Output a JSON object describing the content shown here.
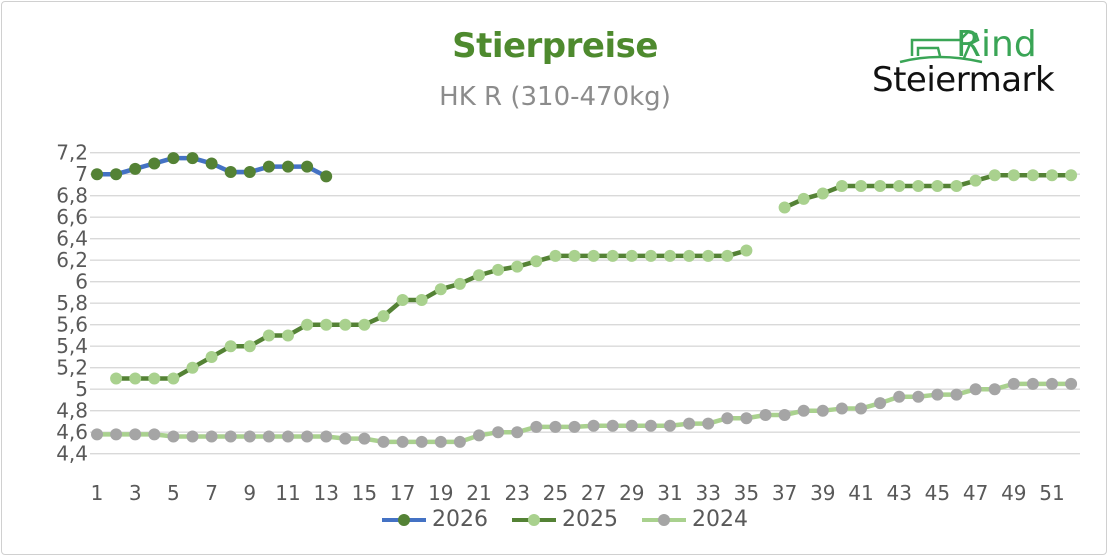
{
  "logo": {
    "line1": "Rind",
    "line2": "Steiermark"
  },
  "chart_data": {
    "type": "line",
    "title": "Stierpreise",
    "subtitle": "HK R (310-470kg)",
    "xlabel": "",
    "ylabel": "",
    "ylim": [
      4.4,
      7.2
    ],
    "ystep": 0.2,
    "xlim": [
      1,
      52
    ],
    "x_tick_labels": [
      "1",
      "3",
      "5",
      "7",
      "9",
      "11",
      "13",
      "15",
      "17",
      "19",
      "21",
      "23",
      "25",
      "27",
      "29",
      "31",
      "33",
      "35",
      "37",
      "39",
      "41",
      "43",
      "45",
      "47",
      "49",
      "51"
    ],
    "y_tick_labels": [
      "4,4",
      "4,6",
      "4,8",
      "5",
      "5,2",
      "5,4",
      "5,6",
      "5,8",
      "6",
      "6,2",
      "6,4",
      "6,6",
      "6,8",
      "7",
      "7,2"
    ],
    "grid": true,
    "legend_position": "bottom",
    "x": [
      1,
      2,
      3,
      4,
      5,
      6,
      7,
      8,
      9,
      10,
      11,
      12,
      13,
      14,
      15,
      16,
      17,
      18,
      19,
      20,
      21,
      22,
      23,
      24,
      25,
      26,
      27,
      28,
      29,
      30,
      31,
      32,
      33,
      34,
      35,
      36,
      37,
      38,
      39,
      40,
      41,
      42,
      43,
      44,
      45,
      46,
      47,
      48,
      49,
      50,
      51,
      52
    ],
    "series": [
      {
        "name": "2026",
        "line_color": "#4472c4",
        "marker_color": "#548235",
        "values": [
          7.0,
          7.0,
          7.05,
          7.1,
          7.15,
          7.15,
          7.1,
          7.02,
          7.02,
          7.07,
          7.07,
          7.07,
          6.98,
          null,
          null,
          null,
          null,
          null,
          null,
          null,
          null,
          null,
          null,
          null,
          null,
          null,
          null,
          null,
          null,
          null,
          null,
          null,
          null,
          null,
          null,
          null,
          null,
          null,
          null,
          null,
          null,
          null,
          null,
          null,
          null,
          null,
          null,
          null,
          null,
          null,
          null,
          null
        ]
      },
      {
        "name": "2025",
        "line_color": "#548235",
        "marker_color": "#a9d18e",
        "values": [
          null,
          5.1,
          5.1,
          5.1,
          5.1,
          5.2,
          5.3,
          5.4,
          5.4,
          5.5,
          5.5,
          5.6,
          5.6,
          5.6,
          5.6,
          5.68,
          5.83,
          5.83,
          5.93,
          5.98,
          6.06,
          6.11,
          6.14,
          6.19,
          6.24,
          6.24,
          6.24,
          6.24,
          6.24,
          6.24,
          6.24,
          6.24,
          6.24,
          6.24,
          6.29,
          null,
          6.69,
          6.77,
          6.82,
          6.89,
          6.89,
          6.89,
          6.89,
          6.89,
          6.89,
          6.89,
          6.94,
          6.99,
          6.99,
          6.99,
          6.99,
          6.99
        ]
      },
      {
        "name": "2024",
        "line_color": "#a9d18e",
        "marker_color": "#a5a5a5",
        "values": [
          4.58,
          4.58,
          4.58,
          4.58,
          4.56,
          4.56,
          4.56,
          4.56,
          4.56,
          4.56,
          4.56,
          4.56,
          4.56,
          4.54,
          4.54,
          4.51,
          4.51,
          4.51,
          4.51,
          4.51,
          4.57,
          4.6,
          4.6,
          4.65,
          4.65,
          4.65,
          4.66,
          4.66,
          4.66,
          4.66,
          4.66,
          4.68,
          4.68,
          4.73,
          4.73,
          4.76,
          4.76,
          4.8,
          4.8,
          4.82,
          4.82,
          4.87,
          4.93,
          4.93,
          4.95,
          4.95,
          5.0,
          5.0,
          5.05,
          5.05,
          5.05,
          5.05
        ]
      }
    ]
  }
}
